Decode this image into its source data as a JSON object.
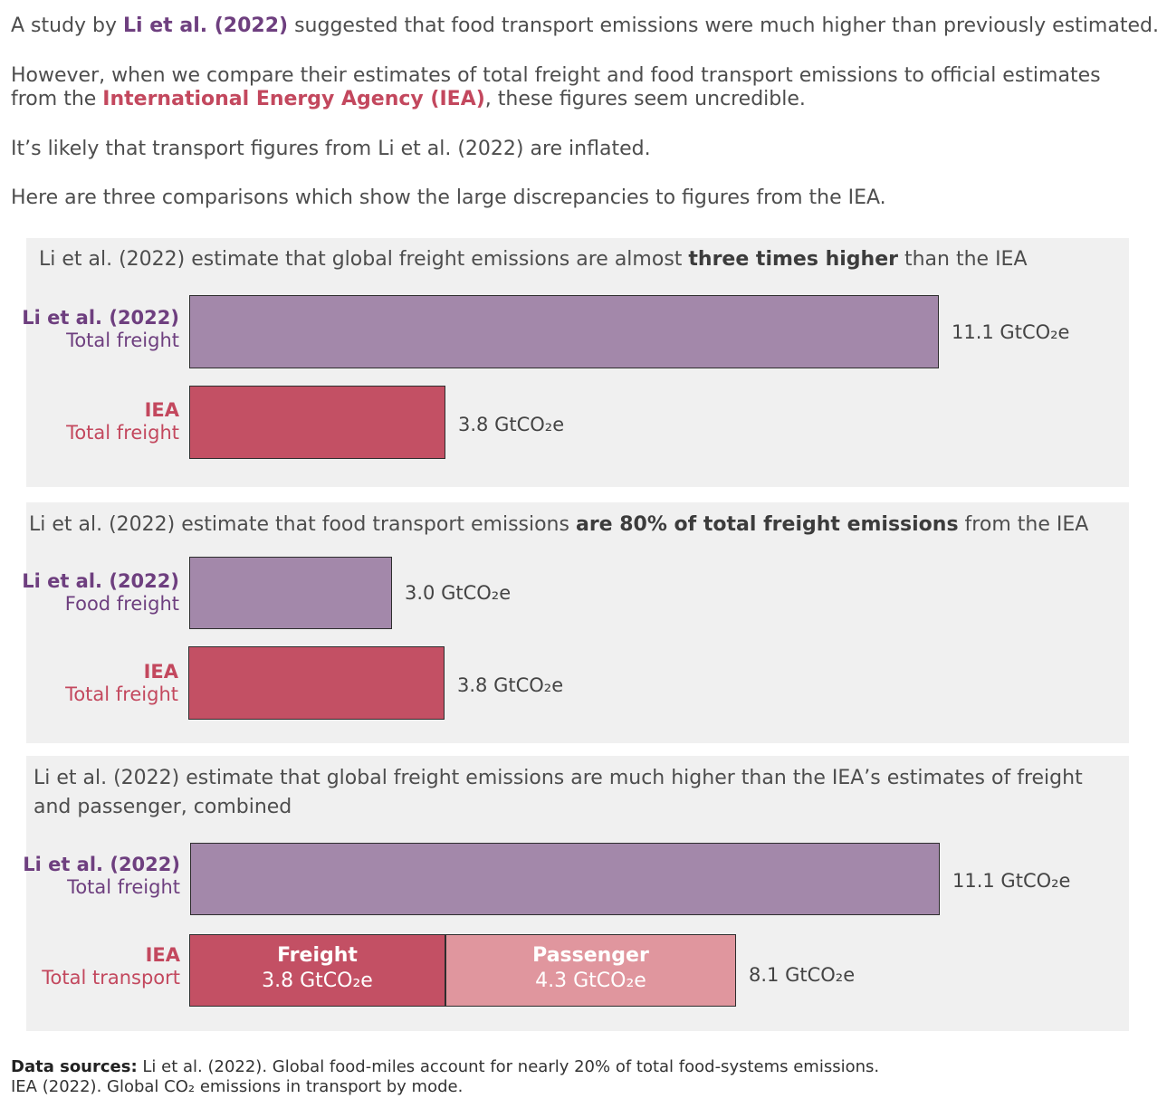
{
  "intro": {
    "p1_pre": "A study by ",
    "p1_link": "Li et al. (2022)",
    "p1_post": " suggested that food transport emissions were much higher than previously estimated.",
    "p2_pre": "However, when we compare their estimates of total freight and food transport emissions to official estimates from the ",
    "p2_link": "International Energy Agency (IEA)",
    "p2_post": ", these figures seem uncredible.",
    "p3": "It’s likely that transport figures from Li et al. (2022) are inflated.",
    "p4": "Here are three comparisons which show the large discrepancies to figures from the IEA."
  },
  "colors": {
    "li": "#a388aa",
    "iea": "#c35064",
    "passenger": "#e0969e",
    "li_text": "#6e3f7f",
    "iea_text": "#c3485e"
  },
  "chart_data": [
    {
      "type": "bar",
      "title_pre": "Li et al. (2022) estimate that global freight emissions are almost ",
      "title_bold": "three times higher",
      "title_post": " than the IEA",
      "rows": [
        {
          "source": "Li et al. (2022)",
          "category": "Total freight",
          "value": 11.1,
          "label": "11.1 GtCO₂e"
        },
        {
          "source": "IEA",
          "category": "Total freight",
          "value": 3.8,
          "label": "3.8 GtCO₂e"
        }
      ]
    },
    {
      "type": "bar",
      "title_pre": "Li et al. (2022) estimate that food transport emissions ",
      "title_bold": "are 80% of total freight emissions",
      "title_post": " from the IEA",
      "rows": [
        {
          "source": "Li et al. (2022)",
          "category": "Food freight",
          "value": 3.0,
          "label": "3.0 GtCO₂e"
        },
        {
          "source": "IEA",
          "category": "Total freight",
          "value": 3.8,
          "label": "3.8 GtCO₂e"
        }
      ]
    },
    {
      "type": "bar",
      "title": "Li et al. (2022) estimate that global freight emissions are much higher than the IEA’s estimates of freight and passenger, combined",
      "rows": [
        {
          "source": "Li et al. (2022)",
          "category": "Total freight",
          "value": 11.1,
          "label": "11.1 GtCO₂e"
        },
        {
          "source": "IEA",
          "category": "Total transport",
          "value": 8.1,
          "label": "8.1 GtCO₂e",
          "segments": [
            {
              "name": "Freight",
              "value": 3.8,
              "label": "3.8 GtCO₂e"
            },
            {
              "name": "Passenger",
              "value": 4.3,
              "label": "4.3 GtCO₂e"
            }
          ]
        }
      ]
    }
  ],
  "sources": {
    "heading": "Data sources:",
    "line1": " Li et al. (2022). Global food-miles account for nearly 20% of total food-systems emissions.",
    "line2": "IEA (2022). Global CO₂ emissions in transport by mode."
  }
}
